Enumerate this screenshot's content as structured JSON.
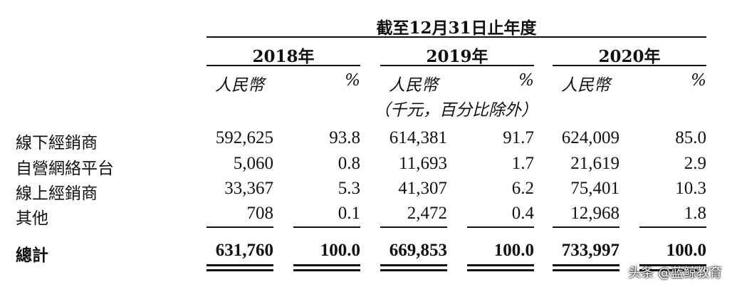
{
  "header": {
    "period": "截至12月31日止年度",
    "years": [
      "2018年",
      "2019年",
      "2020年"
    ],
    "unit_col": "人民幣",
    "pct_col": "%",
    "note": "（千元，百分比除外）"
  },
  "rows": [
    {
      "label": "線下經銷商",
      "v": [
        "592,625",
        "93.8",
        "614,381",
        "91.7",
        "624,009",
        "85.0"
      ]
    },
    {
      "label": "自營網絡平台",
      "v": [
        "5,060",
        "0.8",
        "11,693",
        "1.7",
        "21,619",
        "2.9"
      ]
    },
    {
      "label": "線上經銷商",
      "v": [
        "33,367",
        "5.3",
        "41,307",
        "6.2",
        "75,401",
        "10.3"
      ]
    },
    {
      "label": "其他",
      "v": [
        "708",
        "0.1",
        "2,472",
        "0.4",
        "12,968",
        "1.8"
      ]
    }
  ],
  "total": {
    "label": "總計",
    "v": [
      "631,760",
      "100.0",
      "669,853",
      "100.0",
      "733,997",
      "100.0"
    ]
  },
  "watermark": "头条 @蓝鲸教育"
}
